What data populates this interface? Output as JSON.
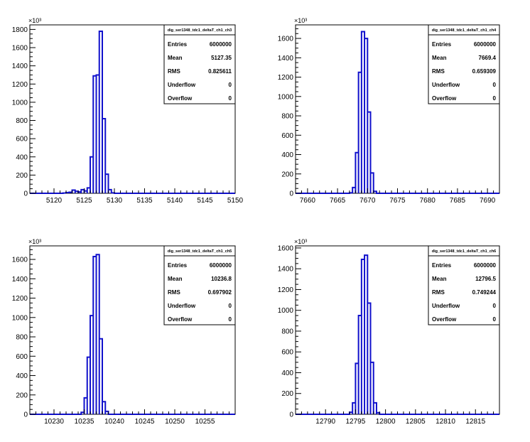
{
  "stat_labels": [
    "Entries",
    "Mean",
    "RMS",
    "Underflow",
    "Overflow"
  ],
  "colors": {
    "histogram": "#1010cc",
    "axis": "#000000",
    "background": "#ffffff"
  },
  "chart_data": [
    {
      "type": "histogram",
      "title": "dig_ser1348_tdc1_deltaT_ch1_ch3",
      "y_multiplier": "×10³",
      "xlim": [
        5116,
        5150
      ],
      "ylim": [
        0,
        1850
      ],
      "xticks": [
        5120,
        5125,
        5130,
        5135,
        5140,
        5145,
        5150
      ],
      "yticks": [
        0,
        200,
        400,
        600,
        800,
        1000,
        1200,
        1400,
        1600,
        1800
      ],
      "bin_width": 0.5,
      "bins": [
        [
          5121.5,
          3
        ],
        [
          5122.0,
          8
        ],
        [
          5122.5,
          12
        ],
        [
          5123.0,
          35
        ],
        [
          5123.5,
          22
        ],
        [
          5124.0,
          15
        ],
        [
          5124.5,
          40
        ],
        [
          5125.0,
          25
        ],
        [
          5125.5,
          60
        ],
        [
          5126.0,
          400
        ],
        [
          5126.5,
          1290
        ],
        [
          5127.0,
          1300
        ],
        [
          5127.5,
          1780
        ],
        [
          5128.0,
          820
        ],
        [
          5128.5,
          210
        ],
        [
          5129.0,
          40
        ],
        [
          5129.5,
          5
        ]
      ],
      "stats": {
        "Entries": "6000000",
        "Mean": "5127.35",
        "RMS": "0.825611",
        "Underflow": "0",
        "Overflow": "0"
      }
    },
    {
      "type": "histogram",
      "title": "dig_ser1348_tdc1_deltaT_ch1_ch4",
      "y_multiplier": "×10³",
      "xlim": [
        7658,
        7692
      ],
      "ylim": [
        0,
        1740
      ],
      "xticks": [
        7660,
        7665,
        7670,
        7675,
        7680,
        7685,
        7690
      ],
      "yticks": [
        0,
        200,
        400,
        600,
        800,
        1000,
        1200,
        1400,
        1600
      ],
      "bin_width": 0.5,
      "bins": [
        [
          7667.0,
          5
        ],
        [
          7667.5,
          60
        ],
        [
          7668.0,
          420
        ],
        [
          7668.5,
          1250
        ],
        [
          7669.0,
          1670
        ],
        [
          7669.5,
          1600
        ],
        [
          7670.0,
          840
        ],
        [
          7670.5,
          210
        ],
        [
          7671.0,
          20
        ]
      ],
      "stats": {
        "Entries": "6000000",
        "Mean": "7669.4",
        "RMS": "0.659309",
        "Underflow": "0",
        "Overflow": "0"
      }
    },
    {
      "type": "histogram",
      "title": "dig_ser1348_tdc1_deltaT_ch1_ch5",
      "y_multiplier": "×10³",
      "xlim": [
        10226,
        10260
      ],
      "ylim": [
        0,
        1740
      ],
      "xticks": [
        10230,
        10235,
        10240,
        10245,
        10250,
        10255
      ],
      "yticks": [
        0,
        200,
        400,
        600,
        800,
        1000,
        1200,
        1400,
        1600
      ],
      "bin_width": 0.5,
      "bins": [
        [
          10234.5,
          20
        ],
        [
          10235.0,
          170
        ],
        [
          10235.5,
          590
        ],
        [
          10236.0,
          1020
        ],
        [
          10236.5,
          1630
        ],
        [
          10237.0,
          1650
        ],
        [
          10237.5,
          780
        ],
        [
          10238.0,
          130
        ],
        [
          10238.5,
          30
        ]
      ],
      "stats": {
        "Entries": "6000000",
        "Mean": "10236.8",
        "RMS": "0.697902",
        "Underflow": "0",
        "Overflow": "0"
      }
    },
    {
      "type": "histogram",
      "title": "dig_ser1348_tdc1_deltaT_ch1_ch6",
      "y_multiplier": "×10³",
      "xlim": [
        12785,
        12819
      ],
      "ylim": [
        0,
        1620
      ],
      "xticks": [
        12790,
        12795,
        12800,
        12805,
        12810,
        12815
      ],
      "yticks": [
        0,
        200,
        400,
        600,
        800,
        1000,
        1200,
        1400,
        1600
      ],
      "bin_width": 0.5,
      "bins": [
        [
          12794.0,
          20
        ],
        [
          12794.5,
          110
        ],
        [
          12795.0,
          490
        ],
        [
          12795.5,
          950
        ],
        [
          12796.0,
          1490
        ],
        [
          12796.5,
          1530
        ],
        [
          12797.0,
          1070
        ],
        [
          12797.5,
          500
        ],
        [
          12798.0,
          110
        ],
        [
          12798.5,
          15
        ]
      ],
      "stats": {
        "Entries": "6000000",
        "Mean": "12796.5",
        "RMS": "0.749244",
        "Underflow": "0",
        "Overflow": "0"
      }
    }
  ]
}
